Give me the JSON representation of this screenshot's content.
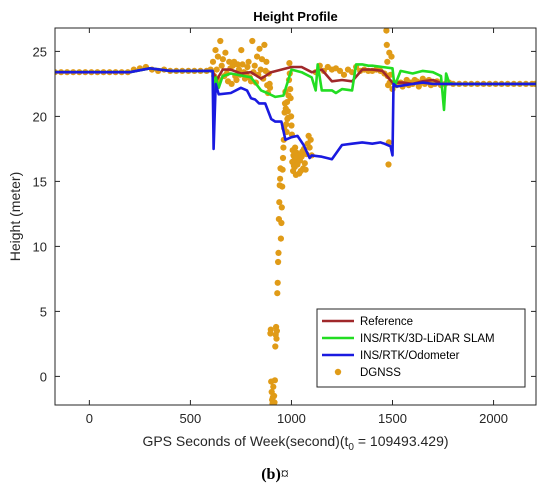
{
  "caption": {
    "label": "(b)",
    "trailing": "¤"
  },
  "chart_data": {
    "type": "line",
    "title": "Height Profile",
    "xlabel_main": "GPS Seconds of Week(second)(t",
    "xlabel_sub": "0",
    "xlabel_tail": " = 109493.429)",
    "ylabel": "Height (meter)",
    "xlim": [
      -170,
      2210
    ],
    "ylim": [
      -2.2,
      26.8
    ],
    "xticks": [
      0,
      500,
      1000,
      1500,
      2000
    ],
    "yticks": [
      0,
      5,
      10,
      15,
      20,
      25
    ],
    "legend_position": "bottom-right",
    "series": [
      {
        "name": "Reference",
        "style": "line",
        "color": "#a0282a",
        "x": [
          -170,
          0,
          200,
          300,
          400,
          500,
          610,
          630,
          660,
          700,
          750,
          800,
          850,
          900,
          950,
          1000,
          1050,
          1100,
          1150,
          1200,
          1250,
          1300,
          1350,
          1400,
          1450,
          1500,
          1550,
          1600,
          1650,
          1700,
          1750,
          1800,
          1900,
          2000,
          2100,
          2210
        ],
        "y": [
          23.4,
          23.4,
          23.4,
          23.7,
          23.5,
          23.5,
          23.5,
          22.8,
          23.6,
          23.6,
          23.3,
          23.4,
          22.9,
          23.4,
          23.6,
          23.8,
          23.8,
          23.4,
          23.6,
          22.7,
          22.8,
          22.7,
          23.6,
          23.6,
          23.5,
          22.6,
          22.6,
          22.5,
          22.7,
          22.8,
          22.5,
          22.5,
          22.5,
          22.5,
          22.5,
          22.5
        ]
      },
      {
        "name": "INS/RTK/3D-LiDAR SLAM",
        "style": "line",
        "color": "#22dd22",
        "x": [
          -170,
          0,
          200,
          300,
          400,
          500,
          600,
          610,
          615,
          625,
          640,
          660,
          700,
          800,
          850,
          880,
          920,
          960,
          1000,
          1050,
          1100,
          1120,
          1130,
          1150,
          1200,
          1220,
          1250,
          1300,
          1320,
          1350,
          1380,
          1400,
          1450,
          1500,
          1510,
          1540,
          1600,
          1650,
          1700,
          1740,
          1755,
          1765,
          1780,
          1800,
          1900,
          2000,
          2100,
          2210
        ],
        "y": [
          23.4,
          23.4,
          23.4,
          23.7,
          23.5,
          23.5,
          23.5,
          23.5,
          21.0,
          23.0,
          22.2,
          23.1,
          23.3,
          23.0,
          22.0,
          21.8,
          21.5,
          21.6,
          23.6,
          23.4,
          23.0,
          22.0,
          24.0,
          22.0,
          22.0,
          21.8,
          22.1,
          22.0,
          24.0,
          24.0,
          23.9,
          23.9,
          23.8,
          23.7,
          22.3,
          23.5,
          23.3,
          23.5,
          23.4,
          23.1,
          20.5,
          23.3,
          22.6,
          22.5,
          22.5,
          22.5,
          22.5,
          22.5
        ]
      },
      {
        "name": "INS/RTK/Odometer",
        "style": "line",
        "color": "#1a1ae0",
        "x": [
          -170,
          0,
          200,
          300,
          400,
          500,
          600,
          610,
          615,
          625,
          640,
          700,
          750,
          780,
          800,
          820,
          840,
          870,
          900,
          920,
          950,
          970,
          1000,
          1030,
          1060,
          1090,
          1100,
          1150,
          1200,
          1250,
          1300,
          1350,
          1400,
          1440,
          1460,
          1490,
          1500,
          1505,
          1520,
          1560,
          1600,
          1650,
          1700,
          1750,
          1800,
          1900,
          2000,
          2100,
          2210
        ],
        "y": [
          23.4,
          23.4,
          23.4,
          23.7,
          23.5,
          23.5,
          23.5,
          23.5,
          17.5,
          22.5,
          21.7,
          21.8,
          22.2,
          22.0,
          21.4,
          21.3,
          21.0,
          21.0,
          19.8,
          19.6,
          19.6,
          18.2,
          18.4,
          18.5,
          17.8,
          16.8,
          17.0,
          16.9,
          16.7,
          17.8,
          17.9,
          18.0,
          17.9,
          18.0,
          17.9,
          17.7,
          17.0,
          22.5,
          22.3,
          22.4,
          22.5,
          22.6,
          22.5,
          22.5,
          22.5,
          22.5,
          22.5,
          22.5,
          22.5
        ]
      },
      {
        "name": "DGNSS",
        "style": "points",
        "color": "#e09b17",
        "points": [
          [
            -170,
            23.4
          ],
          [
            -140,
            23.4
          ],
          [
            -110,
            23.4
          ],
          [
            -80,
            23.4
          ],
          [
            -50,
            23.4
          ],
          [
            -20,
            23.4
          ],
          [
            10,
            23.4
          ],
          [
            40,
            23.4
          ],
          [
            70,
            23.4
          ],
          [
            100,
            23.4
          ],
          [
            130,
            23.4
          ],
          [
            160,
            23.4
          ],
          [
            190,
            23.4
          ],
          [
            220,
            23.6
          ],
          [
            250,
            23.7
          ],
          [
            280,
            23.8
          ],
          [
            310,
            23.6
          ],
          [
            340,
            23.5
          ],
          [
            370,
            23.6
          ],
          [
            400,
            23.5
          ],
          [
            430,
            23.5
          ],
          [
            460,
            23.5
          ],
          [
            490,
            23.5
          ],
          [
            520,
            23.5
          ],
          [
            550,
            23.5
          ],
          [
            580,
            23.5
          ],
          [
            600,
            23.6
          ],
          [
            612,
            24.2
          ],
          [
            618,
            23.1
          ],
          [
            624,
            25.1
          ],
          [
            630,
            23.6
          ],
          [
            636,
            24.6
          ],
          [
            642,
            22.8
          ],
          [
            648,
            25.8
          ],
          [
            655,
            23.9
          ],
          [
            661,
            24.4
          ],
          [
            667,
            23.1
          ],
          [
            673,
            24.9
          ],
          [
            680,
            23.3
          ],
          [
            686,
            22.7
          ],
          [
            692,
            24.2
          ],
          [
            698,
            23.7
          ],
          [
            704,
            22.5
          ],
          [
            710,
            23.9
          ],
          [
            716,
            24.2
          ],
          [
            722,
            23.1
          ],
          [
            728,
            22.8
          ],
          [
            734,
            24.0
          ],
          [
            740,
            23.6
          ],
          [
            746,
            23.2
          ],
          [
            752,
            25.1
          ],
          [
            758,
            24.0
          ],
          [
            764,
            23.4
          ],
          [
            770,
            22.9
          ],
          [
            776,
            23.3
          ],
          [
            782,
            23.8
          ],
          [
            788,
            24.2
          ],
          [
            794,
            23.0
          ],
          [
            800,
            22.7
          ],
          [
            806,
            25.8
          ],
          [
            812,
            23.4
          ],
          [
            818,
            23.9
          ],
          [
            824,
            22.6
          ],
          [
            830,
            24.6
          ],
          [
            836,
            23.2
          ],
          [
            842,
            25.2
          ],
          [
            848,
            23.6
          ],
          [
            854,
            24.4
          ],
          [
            860,
            22.9
          ],
          [
            866,
            25.5
          ],
          [
            872,
            23.5
          ],
          [
            876,
            24.2
          ],
          [
            880,
            22.4
          ],
          [
            884,
            21.8
          ],
          [
            888,
            23.3
          ],
          [
            892,
            22.5
          ],
          [
            894,
            22.2
          ],
          [
            896,
            3.3
          ],
          [
            898,
            3.6
          ],
          [
            900,
            -0.4
          ],
          [
            902,
            -1.2
          ],
          [
            904,
            -1.8
          ],
          [
            906,
            -2.1
          ],
          [
            908,
            -1.6
          ],
          [
            910,
            -0.8
          ],
          [
            912,
            -2.2
          ],
          [
            914,
            -1.5
          ],
          [
            916,
            -2.0
          ],
          [
            918,
            -0.3
          ],
          [
            920,
            2.3
          ],
          [
            922,
            3.2
          ],
          [
            924,
            3.8
          ],
          [
            926,
            2.9
          ],
          [
            928,
            3.5
          ],
          [
            930,
            6.4
          ],
          [
            932,
            7.2
          ],
          [
            934,
            8.8
          ],
          [
            936,
            9.5
          ],
          [
            938,
            12.1
          ],
          [
            940,
            13.4
          ],
          [
            942,
            14.7
          ],
          [
            944,
            15.2
          ],
          [
            946,
            16.0
          ],
          [
            948,
            10.6
          ],
          [
            950,
            11.8
          ],
          [
            952,
            13.0
          ],
          [
            954,
            14.6
          ],
          [
            956,
            15.9
          ],
          [
            958,
            16.8
          ],
          [
            960,
            17.6
          ],
          [
            962,
            18.2
          ],
          [
            964,
            19.1
          ],
          [
            966,
            20.3
          ],
          [
            968,
            21.0
          ],
          [
            970,
            21.9
          ],
          [
            972,
            20.6
          ],
          [
            974,
            19.4
          ],
          [
            976,
            18.8
          ],
          [
            978,
            21.1
          ],
          [
            980,
            19.8
          ],
          [
            982,
            20.4
          ],
          [
            984,
            19.9
          ],
          [
            986,
            21.6
          ],
          [
            988,
            22.8
          ],
          [
            990,
            24.1
          ],
          [
            992,
            23.3
          ],
          [
            994,
            22.1
          ],
          [
            996,
            21.4
          ],
          [
            998,
            20.0
          ],
          [
            1000,
            19.3
          ],
          [
            1002,
            18.6
          ],
          [
            1004,
            16.5
          ],
          [
            1006,
            17.4
          ],
          [
            1008,
            15.8
          ],
          [
            1010,
            17.0
          ],
          [
            1012,
            16.2
          ],
          [
            1014,
            16.9
          ],
          [
            1016,
            16.1
          ],
          [
            1018,
            17.6
          ],
          [
            1020,
            16.4
          ],
          [
            1022,
            15.5
          ],
          [
            1024,
            16.8
          ],
          [
            1026,
            17.2
          ],
          [
            1030,
            16.3
          ],
          [
            1034,
            17.0
          ],
          [
            1038,
            15.6
          ],
          [
            1042,
            16.6
          ],
          [
            1046,
            15.8
          ],
          [
            1050,
            16.9
          ],
          [
            1054,
            17.3
          ],
          [
            1058,
            16.0
          ],
          [
            1062,
            17.5
          ],
          [
            1066,
            16.4
          ],
          [
            1070,
            15.9
          ],
          [
            1074,
            17.1
          ],
          [
            1080,
            17.9
          ],
          [
            1085,
            18.5
          ],
          [
            1090,
            17.6
          ],
          [
            1095,
            18.2
          ],
          [
            1100,
            17.0
          ],
          [
            1120,
            23.4
          ],
          [
            1140,
            23.9
          ],
          [
            1160,
            23.5
          ],
          [
            1180,
            23.8
          ],
          [
            1200,
            23.6
          ],
          [
            1220,
            23.7
          ],
          [
            1240,
            23.5
          ],
          [
            1260,
            23.2
          ],
          [
            1280,
            23.6
          ],
          [
            1300,
            23.4
          ],
          [
            1320,
            23.8
          ],
          [
            1340,
            23.5
          ],
          [
            1360,
            23.6
          ],
          [
            1380,
            23.5
          ],
          [
            1400,
            23.5
          ],
          [
            1420,
            23.6
          ],
          [
            1440,
            23.5
          ],
          [
            1460,
            23.3
          ],
          [
            1470,
            26.6
          ],
          [
            1472,
            25.5
          ],
          [
            1474,
            24.2
          ],
          [
            1476,
            23.1
          ],
          [
            1478,
            22.4
          ],
          [
            1480,
            16.3
          ],
          [
            1482,
            18.0
          ],
          [
            1484,
            24.9
          ],
          [
            1486,
            22.6
          ],
          [
            1490,
            23.2
          ],
          [
            1495,
            24.6
          ],
          [
            1500,
            22.1
          ],
          [
            1510,
            22.6
          ],
          [
            1520,
            22.4
          ],
          [
            1530,
            22.5
          ],
          [
            1540,
            22.6
          ],
          [
            1550,
            22.3
          ],
          [
            1560,
            22.5
          ],
          [
            1570,
            22.8
          ],
          [
            1580,
            22.4
          ],
          [
            1590,
            22.6
          ],
          [
            1600,
            22.5
          ],
          [
            1610,
            22.8
          ],
          [
            1620,
            22.7
          ],
          [
            1630,
            22.3
          ],
          [
            1640,
            22.6
          ],
          [
            1650,
            22.9
          ],
          [
            1660,
            22.5
          ],
          [
            1670,
            22.7
          ],
          [
            1680,
            22.8
          ],
          [
            1690,
            22.4
          ],
          [
            1700,
            22.6
          ],
          [
            1710,
            22.5
          ],
          [
            1720,
            22.7
          ],
          [
            1730,
            22.6
          ],
          [
            1740,
            22.4
          ],
          [
            1760,
            22.5
          ],
          [
            1780,
            22.6
          ],
          [
            1800,
            22.5
          ],
          [
            1830,
            22.5
          ],
          [
            1860,
            22.5
          ],
          [
            1890,
            22.5
          ],
          [
            1920,
            22.5
          ],
          [
            1950,
            22.5
          ],
          [
            1980,
            22.5
          ],
          [
            2010,
            22.5
          ],
          [
            2040,
            22.5
          ],
          [
            2070,
            22.5
          ],
          [
            2100,
            22.5
          ],
          [
            2130,
            22.5
          ],
          [
            2160,
            22.5
          ],
          [
            2190,
            22.5
          ],
          [
            2205,
            22.5
          ]
        ]
      }
    ]
  }
}
